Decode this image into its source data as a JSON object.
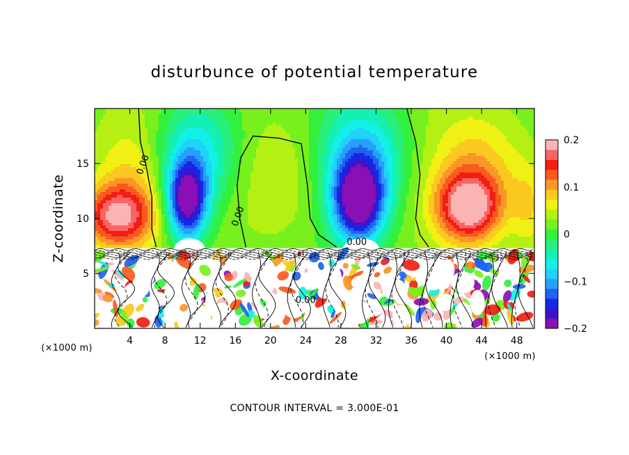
{
  "chart_data": {
    "type": "heatmap",
    "title": "disturbunce of potential temperature",
    "xlabel": "X-coordinate",
    "ylabel": "Z-coordinate",
    "x_unit": "(×1000 m)",
    "z_unit": "(×1000 m)",
    "x_ticks": [
      4,
      8,
      12,
      16,
      20,
      24,
      28,
      32,
      36,
      40,
      44,
      48
    ],
    "y_ticks": [
      5,
      10,
      15
    ],
    "xlim": [
      0,
      50
    ],
    "ylim": [
      0,
      20
    ],
    "colorbar": {
      "range": [
        -0.2,
        0.2
      ],
      "ticks": [
        {
          "value": 0.2,
          "label": "0.2"
        },
        {
          "value": 0.1,
          "label": "0.1"
        },
        {
          "value": 0,
          "label": "0"
        },
        {
          "value": -0.1,
          "label": "−0.1"
        },
        {
          "value": -0.2,
          "label": "−0.2"
        }
      ],
      "colors": [
        "#8a0fb4",
        "#3c14c8",
        "#1428e6",
        "#1e64f0",
        "#28a0fa",
        "#1ed2fa",
        "#14f0e6",
        "#14f0b4",
        "#28f07a",
        "#32f03c",
        "#78f01e",
        "#b4f014",
        "#f0f014",
        "#fac81e",
        "#fa9628",
        "#fa5a1e",
        "#f01e14",
        "#fa6464",
        "#fab4b4"
      ]
    },
    "lower_zone_top": 7.3,
    "features": [
      {
        "kind": "warm-anomaly",
        "x": 2.5,
        "z": 10.5,
        "value": 0.15
      },
      {
        "kind": "cold-anomaly",
        "x": 10.5,
        "z": 12,
        "value": -0.2
      },
      {
        "kind": "cold-anomaly",
        "x": 30,
        "z": 12,
        "value": -0.19
      },
      {
        "kind": "warm-anomaly",
        "x": 42.5,
        "z": 11,
        "value": 0.17
      }
    ],
    "contour_labels": [
      {
        "text": "0.00",
        "x": 5.8,
        "z": 14.8
      },
      {
        "text": "0.00",
        "x": 16.6,
        "z": 10.1
      },
      {
        "text": "0.00",
        "x": 29.8,
        "z": 7.6
      },
      {
        "text": "0.00",
        "x": 24,
        "z": 2.3
      }
    ]
  },
  "footer": {
    "contour_interval": "CONTOUR INTERVAL = 3.000E-01"
  }
}
